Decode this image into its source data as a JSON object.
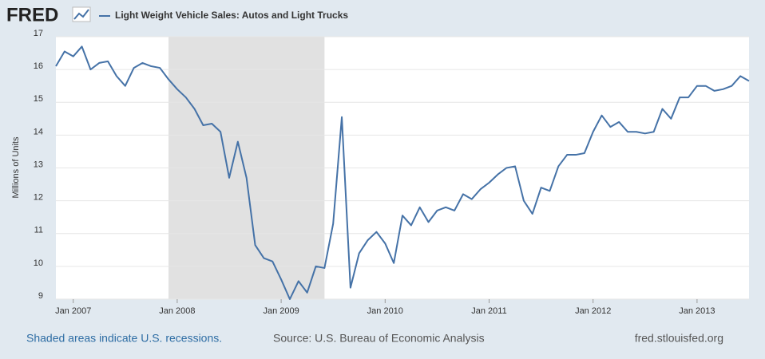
{
  "logo": "FRED",
  "chart_data": {
    "type": "line",
    "y_label": "Millions of Units",
    "x": [
      "2006-11",
      "2006-12",
      "2007-01",
      "2007-02",
      "2007-03",
      "2007-04",
      "2007-05",
      "2007-06",
      "2007-07",
      "2007-08",
      "2007-09",
      "2007-10",
      "2007-11",
      "2007-12",
      "2008-01",
      "2008-02",
      "2008-03",
      "2008-04",
      "2008-05",
      "2008-06",
      "2008-07",
      "2008-08",
      "2008-09",
      "2008-10",
      "2008-11",
      "2008-12",
      "2009-01",
      "2009-02",
      "2009-03",
      "2009-04",
      "2009-05",
      "2009-06",
      "2009-07",
      "2009-08",
      "2009-09",
      "2009-10",
      "2009-11",
      "2009-12",
      "2010-01",
      "2010-02",
      "2010-03",
      "2010-04",
      "2010-05",
      "2010-06",
      "2010-07",
      "2010-08",
      "2010-09",
      "2010-10",
      "2010-11",
      "2010-12",
      "2011-01",
      "2011-02",
      "2011-03",
      "2011-04",
      "2011-05",
      "2011-06",
      "2011-07",
      "2011-08",
      "2011-09",
      "2011-10",
      "2011-11",
      "2011-12",
      "2012-01",
      "2012-02",
      "2012-03",
      "2012-04",
      "2012-05",
      "2012-06",
      "2012-07",
      "2012-08",
      "2012-09",
      "2012-10",
      "2012-11",
      "2012-12",
      "2013-01",
      "2013-02",
      "2013-03",
      "2013-04",
      "2013-05",
      "2013-06",
      "2013-07"
    ],
    "series": [
      {
        "name": "Light Weight Vehicle Sales: Autos and Light Trucks",
        "color": "#4572a7",
        "values": [
          16.1,
          16.55,
          16.4,
          16.7,
          16.0,
          16.2,
          16.25,
          15.8,
          15.5,
          16.05,
          16.2,
          16.1,
          16.05,
          15.7,
          15.4,
          15.15,
          14.8,
          14.3,
          14.35,
          14.1,
          12.7,
          13.8,
          12.7,
          10.65,
          10.25,
          10.15,
          9.6,
          9.0,
          9.55,
          9.2,
          10.0,
          9.95,
          11.3,
          14.55,
          9.35,
          10.4,
          10.8,
          11.05,
          10.7,
          10.1,
          11.55,
          11.25,
          11.8,
          11.35,
          11.7,
          11.8,
          11.7,
          12.2,
          12.05,
          12.35,
          12.55,
          12.8,
          13.0,
          13.05,
          12.0,
          11.6,
          12.4,
          12.3,
          13.05,
          13.4,
          13.4,
          13.45,
          14.1,
          14.6,
          14.25,
          14.4,
          14.1,
          14.1,
          14.05,
          14.1,
          14.8,
          14.5,
          15.15,
          15.15,
          15.5,
          15.5,
          15.35,
          15.4,
          15.5,
          15.8,
          15.65
        ]
      }
    ],
    "xlim": [
      "2006-11",
      "2013-07"
    ],
    "xticks": [
      {
        "value": "2007-01",
        "label": "Jan 2007"
      },
      {
        "value": "2008-01",
        "label": "Jan 2008"
      },
      {
        "value": "2009-01",
        "label": "Jan 2009"
      },
      {
        "value": "2010-01",
        "label": "Jan 2010"
      },
      {
        "value": "2011-01",
        "label": "Jan 2011"
      },
      {
        "value": "2012-01",
        "label": "Jan 2012"
      },
      {
        "value": "2013-01",
        "label": "Jan 2013"
      }
    ],
    "ylim": [
      9,
      17
    ],
    "yticks": [
      9,
      10,
      11,
      12,
      13,
      14,
      15,
      16,
      17
    ],
    "grid": true,
    "recessions": [
      {
        "start": "2007-12",
        "end": "2009-06"
      }
    ],
    "recession_note": "Shaded areas indicate U.S. recessions.",
    "source": "Source: U.S. Bureau of Economic Analysis",
    "site": "fred.stlouisfed.org"
  }
}
